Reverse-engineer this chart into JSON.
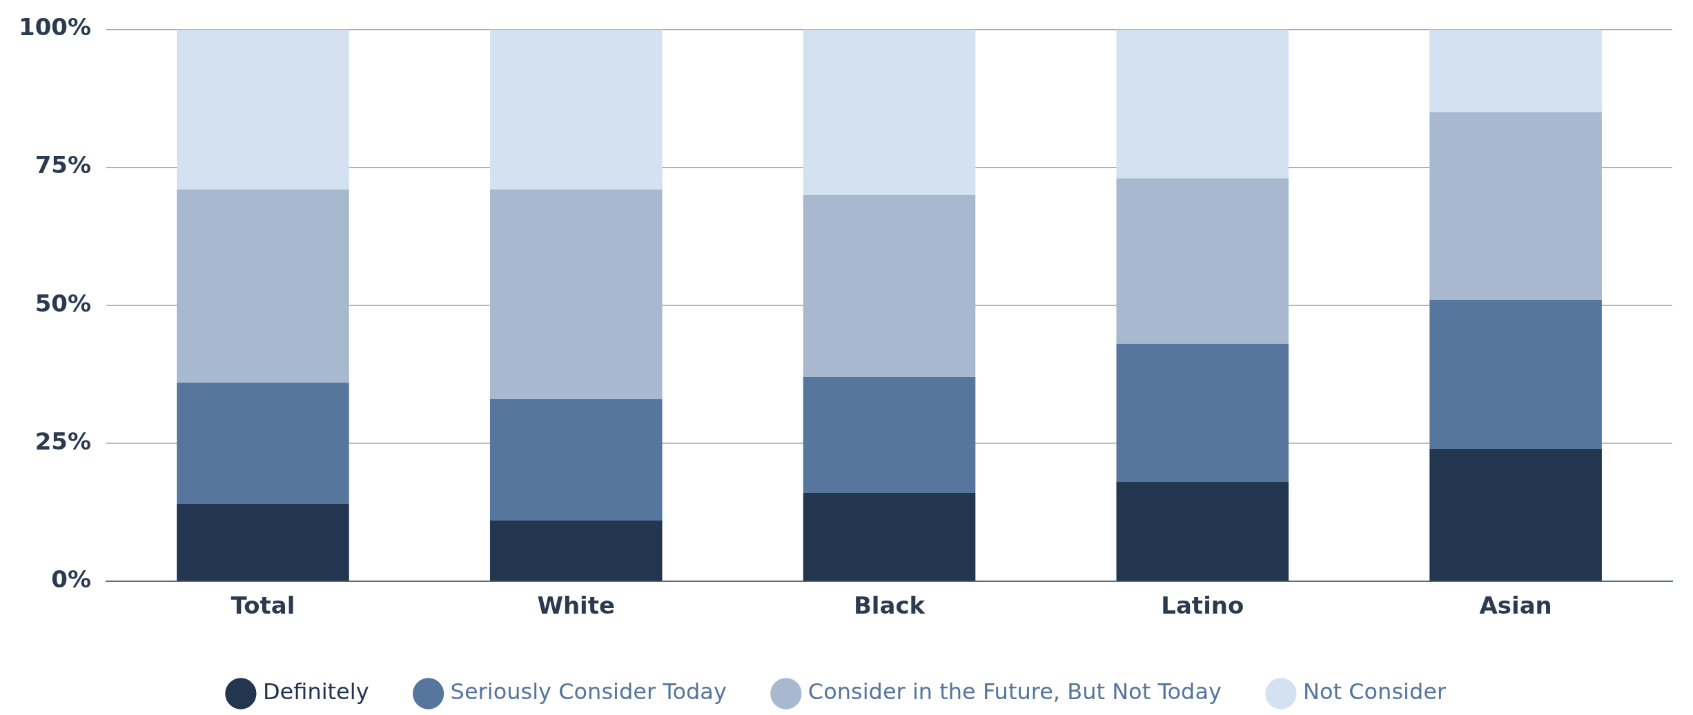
{
  "chart_data": {
    "type": "bar",
    "stacked": true,
    "categories": [
      "Total",
      "White",
      "Black",
      "Latino",
      "Asian"
    ],
    "series": [
      {
        "name": "Definitely",
        "color": "#22364f",
        "values": [
          14,
          11,
          16,
          18,
          24
        ]
      },
      {
        "name": "Seriously Consider Today",
        "color": "#57769d",
        "values": [
          22,
          22,
          21,
          25,
          27
        ]
      },
      {
        "name": "Consider in the Future, But Not Today",
        "color": "#a8b9cf",
        "values": [
          35,
          38,
          33,
          30,
          34
        ]
      },
      {
        "name": "Not Consider",
        "color": "#d3e1f0",
        "values": [
          29,
          29,
          30,
          27,
          15
        ]
      }
    ],
    "ylim": [
      0,
      100
    ],
    "yticks": [
      {
        "value": 0,
        "label": "0%"
      },
      {
        "value": 25,
        "label": "25%"
      },
      {
        "value": 50,
        "label": "50%"
      },
      {
        "value": 75,
        "label": "75%"
      },
      {
        "value": 100,
        "label": "100%"
      }
    ],
    "grid": "y",
    "legend": "bottom"
  }
}
